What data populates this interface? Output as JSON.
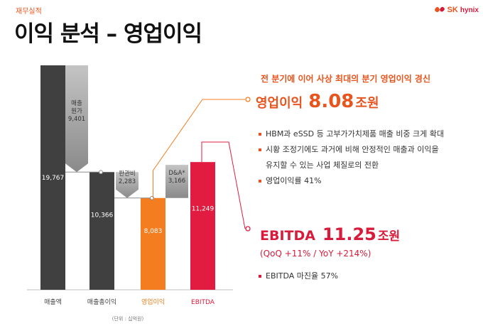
{
  "header": {
    "section_label": "재무실적",
    "title": "이익 분석 – 영업이익",
    "brand_sk": "SK",
    "brand_sub": "hynix"
  },
  "chart_data": {
    "type": "bar",
    "subtype": "waterfall",
    "categories": [
      "매출액",
      "매출총이익",
      "영업이익",
      "EBITDA"
    ],
    "values": [
      19767,
      10366,
      8083,
      11249
    ],
    "value_labels": [
      "19,767",
      "10,366",
      "8,083",
      "11,249"
    ],
    "bridges": [
      {
        "label_lines": [
          "매출",
          "원가",
          "9,401"
        ],
        "value": 9401
      },
      {
        "label_lines": [
          "판관비",
          "2,283"
        ],
        "value": 2283
      },
      {
        "label_lines": [
          "D&A*",
          "3,166"
        ],
        "value": 3166
      }
    ],
    "unit_note": "(단위 : 십억원)",
    "ylim": [
      0,
      19767
    ],
    "colors": {
      "dark": "#404040",
      "gray": "#9a9a9a",
      "orange": "#f47d20",
      "red": "#e21c40",
      "label_orange": "#f08020",
      "label_red": "#d81b3b"
    }
  },
  "annotation": {
    "headline": "전 분기에 이어 사상 최대의 분기 영업이익 경신",
    "op": {
      "label": "영업이익",
      "value": "8.08",
      "unit": "조원"
    },
    "bullets": [
      [
        "HBM과 eSSD 등 고부가가치제품 매출 비중 크게 확대"
      ],
      [
        "시황 조정기에도 과거에 비해 안정적인 매출과 이익을",
        "유지할 수 있는 사업 체질로의 전환"
      ],
      [
        "영업이익률 41%"
      ]
    ],
    "ebitda": {
      "label": "EBITDA",
      "value": "11.25",
      "unit": "조원",
      "growth": "(QoQ +11% / YoY +214%)"
    },
    "ebitda_bullet": "EBITDA 마진율 57%"
  }
}
